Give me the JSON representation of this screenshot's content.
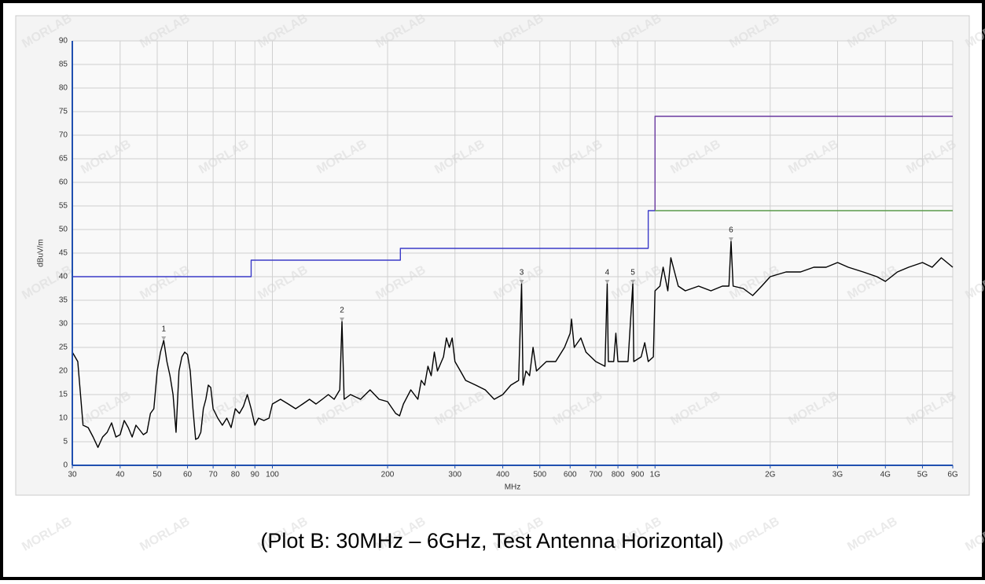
{
  "chart_data": {
    "type": "line",
    "caption": "(Plot B: 30MHz – 6GHz, Test Antenna Horizontal)",
    "watermark": "MORLAB",
    "xlabel": "MHz",
    "ylabel": "dBuV/m",
    "xscale": "log",
    "grid": true,
    "xlim": [
      30,
      6000
    ],
    "ylim": [
      0,
      90
    ],
    "xticks": [
      30,
      40,
      50,
      60,
      70,
      80,
      90,
      100,
      200,
      300,
      400,
      500,
      600,
      700,
      800,
      900,
      {
        "value": 1000,
        "label": "1G"
      },
      {
        "value": 2000,
        "label": "2G"
      },
      {
        "value": 3000,
        "label": "3G"
      },
      {
        "value": 4000,
        "label": "4G"
      },
      {
        "value": 5000,
        "label": "5G"
      },
      {
        "value": 6000,
        "label": "6G"
      }
    ],
    "yticks": [
      0,
      5,
      10,
      15,
      20,
      25,
      30,
      35,
      40,
      45,
      50,
      55,
      60,
      65,
      70,
      75,
      80,
      85,
      90
    ],
    "series": [
      {
        "color": "#3a3ac8",
        "x": [
          30,
          88,
          88,
          216,
          216,
          960,
          960,
          1000
        ],
        "values": [
          40,
          40,
          43.5,
          43.5,
          46,
          46,
          54,
          54
        ]
      },
      {
        "color": "#6a3aa0",
        "x": [
          1000,
          1000,
          6000
        ],
        "values": [
          54,
          74,
          74
        ]
      },
      {
        "color": "#5a9a4a",
        "x": [
          1000,
          6000
        ],
        "values": [
          54,
          54
        ]
      },
      {
        "color": "#000000",
        "x": [
          30,
          31,
          32,
          33,
          34,
          35,
          36,
          37,
          38,
          39,
          40,
          41,
          42,
          43,
          44,
          45,
          46,
          47,
          48,
          49,
          50,
          51,
          52,
          53,
          54,
          55,
          56,
          57,
          58,
          59,
          60,
          61,
          62,
          63,
          64,
          65,
          66,
          67,
          68,
          69,
          70,
          72,
          74,
          76,
          78,
          80,
          82,
          84,
          86,
          88,
          90,
          92,
          95,
          98,
          100,
          105,
          110,
          115,
          120,
          125,
          130,
          135,
          140,
          145,
          150,
          152,
          154,
          160,
          170,
          180,
          190,
          200,
          210,
          215,
          220,
          230,
          240,
          245,
          250,
          255,
          260,
          265,
          270,
          280,
          285,
          290,
          295,
          300,
          310,
          320,
          340,
          360,
          380,
          400,
          420,
          440,
          448,
          452,
          460,
          470,
          480,
          490,
          520,
          550,
          580,
          600,
          605,
          615,
          640,
          660,
          700,
          740,
          750,
          755,
          780,
          790,
          800,
          850,
          875,
          880,
          920,
          940,
          960,
          990,
          1000,
          1030,
          1050,
          1080,
          1100,
          1150,
          1200,
          1300,
          1400,
          1500,
          1560,
          1580,
          1600,
          1700,
          1800,
          1900,
          2000,
          2200,
          2400,
          2600,
          2800,
          3000,
          3200,
          3500,
          3800,
          4000,
          4300,
          4600,
          5000,
          5300,
          5600,
          6000
        ],
        "values": [
          24,
          22,
          8.5,
          8,
          6,
          3.8,
          6,
          7,
          9,
          6,
          6.5,
          9.5,
          8,
          6,
          8.5,
          7.5,
          6.5,
          7,
          11,
          12,
          20,
          24,
          26.5,
          22,
          19,
          15,
          7,
          20,
          23,
          24,
          23.5,
          20,
          12,
          5.5,
          5.8,
          7,
          12,
          14,
          17,
          16.5,
          12,
          10,
          8.5,
          10,
          8,
          12,
          11,
          12.5,
          15,
          12,
          8.5,
          10,
          9.5,
          10,
          13,
          14,
          13,
          12,
          13,
          14,
          13,
          14,
          15,
          14,
          16,
          30.5,
          14,
          15,
          14,
          16,
          14,
          13.5,
          11,
          10.5,
          13,
          16,
          14,
          18,
          17,
          21,
          19,
          24,
          20,
          23,
          27,
          25,
          27,
          22,
          20,
          18,
          17,
          16,
          14,
          15,
          17,
          18,
          38.5,
          17,
          20,
          19,
          25,
          20,
          22,
          22,
          25,
          28,
          31,
          25,
          27,
          24,
          22,
          21,
          38.5,
          22,
          22,
          28,
          22,
          22,
          38.5,
          22,
          23,
          26,
          22,
          23,
          37,
          38,
          42,
          37,
          44,
          38,
          37,
          38,
          37,
          38,
          38,
          47.5,
          38,
          37.5,
          36,
          38,
          40,
          41,
          41,
          42,
          42,
          43,
          42,
          41,
          40,
          39,
          41,
          42,
          43,
          42,
          44,
          42
        ]
      }
    ],
    "markers": [
      {
        "label": "1",
        "x": 52,
        "value": 26.5
      },
      {
        "label": "2",
        "x": 152,
        "value": 30.5
      },
      {
        "label": "3",
        "x": 448,
        "value": 38.5
      },
      {
        "label": "4",
        "x": 750,
        "value": 38.5
      },
      {
        "label": "5",
        "x": 875,
        "value": 38.5
      },
      {
        "label": "6",
        "x": 1580,
        "value": 47.5
      }
    ]
  }
}
